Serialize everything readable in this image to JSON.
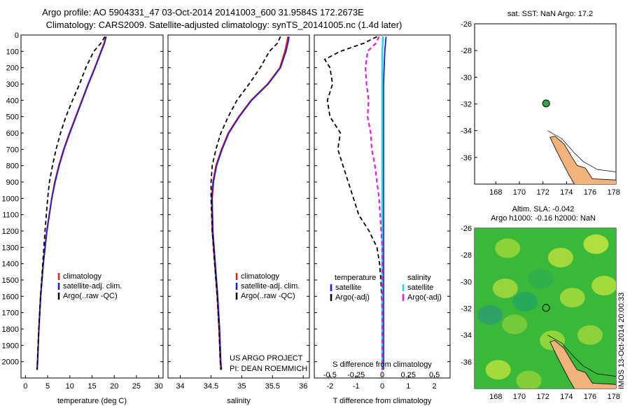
{
  "title": {
    "line1": "Argo profile: AO 5904331_47 03-Oct-2014 20141003_600 31.9584S 172.2673E",
    "line2": "Climatology: CARS2009. Satellite-adjusted climatology: synTS_20141005.nc (1.4d later)"
  },
  "colors": {
    "climatology": "#e8211b",
    "satellite": "#1b1bd8",
    "argo": "#000000",
    "argo_adj_s": "#e020e0",
    "satellite_s": "#22d8e8",
    "land": "#f2b27a",
    "field": "#39b83a"
  },
  "project": {
    "line1": "US ARGO PROJECT",
    "line2": "PI: DEAN ROEMMICH"
  },
  "side_label": "IMOS 13-Oct-2014 20:00:33",
  "chart_data": [
    {
      "type": "line",
      "name": "temperature-profile",
      "xlabel": "temperature (deg C)",
      "xlim": [
        -1,
        31
      ],
      "xticks": [
        0,
        5,
        10,
        15,
        20,
        25,
        30
      ],
      "ylim": [
        2100,
        0
      ],
      "yticks": [
        0,
        100,
        200,
        300,
        400,
        500,
        600,
        700,
        800,
        900,
        1000,
        1100,
        1200,
        1300,
        1400,
        1500,
        1600,
        1700,
        1800,
        1900,
        2000
      ],
      "legend": [
        "climatology",
        "satellite-adj. clim.",
        "Argo(..raw -QC)"
      ],
      "series": [
        {
          "name": "climatology",
          "depth": [
            10,
            50,
            100,
            200,
            300,
            400,
            500,
            600,
            700,
            800,
            900,
            1000,
            1200,
            1400,
            1600,
            1800,
            2000,
            2050
          ],
          "values": [
            18.1,
            17.7,
            17.0,
            15.6,
            14.1,
            12.7,
            11.3,
            9.9,
            8.6,
            7.5,
            6.6,
            5.9,
            4.8,
            4.0,
            3.4,
            3.0,
            2.7,
            2.6
          ]
        },
        {
          "name": "satellite-adj. clim.",
          "depth": [
            10,
            50,
            100,
            200,
            300,
            400,
            500,
            600,
            700,
            800,
            900,
            1000,
            1200,
            1400,
            1600,
            1800,
            2000,
            2050
          ],
          "values": [
            18.2,
            17.8,
            17.1,
            15.7,
            14.2,
            12.8,
            11.4,
            10.0,
            8.7,
            7.6,
            6.7,
            5.95,
            4.85,
            4.05,
            3.45,
            3.05,
            2.75,
            2.65
          ]
        },
        {
          "name": "Argo(..raw -QC)",
          "depth": [
            10,
            50,
            100,
            200,
            300,
            400,
            500,
            600,
            700,
            800,
            900,
            1000,
            1200,
            1400,
            1600,
            1800,
            2000,
            2050
          ],
          "values": [
            17.9,
            17.0,
            15.4,
            13.6,
            12.2,
            10.6,
            9.1,
            7.9,
            6.9,
            6.1,
            5.4,
            5.0,
            4.4,
            3.9,
            3.4,
            3.0,
            2.7,
            2.6
          ]
        }
      ]
    },
    {
      "type": "line",
      "name": "salinity-profile",
      "xlabel": "salinity",
      "xlim": [
        33.8,
        36.1
      ],
      "xticks": [
        34,
        34.5,
        35,
        35.5,
        36
      ],
      "ylim": [
        2100,
        0
      ],
      "legend": [
        "climatology",
        "satellite-adj. clim.",
        "Argo(..raw -QC)"
      ],
      "series": [
        {
          "name": "climatology",
          "depth": [
            10,
            50,
            100,
            200,
            300,
            400,
            500,
            600,
            700,
            800,
            900,
            1000,
            1200,
            1400,
            1600,
            1800,
            2000,
            2050
          ],
          "values": [
            35.75,
            35.73,
            35.7,
            35.62,
            35.42,
            35.15,
            34.95,
            34.78,
            34.67,
            34.58,
            34.53,
            34.51,
            34.52,
            34.56,
            34.6,
            34.63,
            34.65,
            34.66
          ]
        },
        {
          "name": "satellite-adj. clim.",
          "depth": [
            10,
            50,
            100,
            200,
            300,
            400,
            500,
            600,
            700,
            800,
            900,
            1000,
            1200,
            1400,
            1600,
            1800,
            2000,
            2050
          ],
          "values": [
            35.77,
            35.75,
            35.72,
            35.63,
            35.43,
            35.16,
            34.96,
            34.79,
            34.68,
            34.59,
            34.54,
            34.52,
            34.53,
            34.57,
            34.61,
            34.64,
            34.66,
            34.67
          ]
        },
        {
          "name": "Argo(..raw -QC)",
          "depth": [
            10,
            50,
            100,
            200,
            300,
            400,
            500,
            600,
            700,
            800,
            900,
            1000,
            1200,
            1400,
            1600,
            1800,
            2000,
            2050
          ],
          "values": [
            35.63,
            35.58,
            35.45,
            35.3,
            35.12,
            34.92,
            34.78,
            34.66,
            34.58,
            34.52,
            34.5,
            34.5,
            34.52,
            34.56,
            34.6,
            34.63,
            34.65,
            34.66
          ]
        }
      ]
    },
    {
      "type": "line",
      "name": "difference-profile",
      "xlabel": "T difference from climatology",
      "xlabel_top": "S difference from climatology",
      "xlim": [
        -2.6,
        2.6
      ],
      "xticks": [
        -2,
        -1,
        0,
        1,
        2
      ],
      "xticks_s": [
        -0.5,
        -0.25,
        0,
        0.25,
        0.5
      ],
      "xticks_s_labels": [
        "-0.5",
        "-0.25",
        "0",
        "0.25",
        "0.5"
      ],
      "ylim": [
        2100,
        0
      ],
      "legend_headers": [
        "temperature",
        "salinity"
      ],
      "legend": [
        "satellite",
        "Argo(-adj)",
        "satellite",
        "Argo(-adj)"
      ],
      "series": [
        {
          "name": "T satellite",
          "depth": [
            10,
            100,
            300,
            600,
            900,
            1200,
            1500,
            1800,
            2050
          ],
          "values": [
            0.15,
            0.1,
            0.05,
            0.05,
            0.05,
            0.05,
            0.05,
            0.05,
            0.05
          ]
        },
        {
          "name": "T Argo(-adj)",
          "depth": [
            10,
            50,
            100,
            150,
            200,
            300,
            400,
            500,
            600,
            700,
            800,
            900,
            1000,
            1100,
            1200,
            1300,
            1400,
            1500,
            1700,
            2050
          ],
          "values": [
            -0.2,
            -0.7,
            -1.6,
            -2.2,
            -2.0,
            -1.9,
            -2.1,
            -2.0,
            -1.6,
            -1.7,
            -1.5,
            -1.3,
            -1.1,
            -0.9,
            -0.5,
            -0.2,
            -0.1,
            -0.05,
            0,
            0
          ]
        },
        {
          "name": "S satellite",
          "depth": [
            10,
            100,
            300,
            600,
            900,
            1200,
            1500,
            1800,
            2050
          ],
          "values": [
            0.01,
            0.0,
            0.0,
            0.0,
            0.0,
            0.0,
            0.0,
            0.0,
            0.0
          ]
        },
        {
          "name": "S Argo(-adj)",
          "depth": [
            10,
            50,
            100,
            200,
            300,
            400,
            500,
            600,
            700,
            800,
            900,
            1000,
            1100,
            1200,
            1300,
            1400,
            1600,
            2050
          ],
          "values": [
            -0.03,
            -0.06,
            -0.14,
            -0.16,
            -0.15,
            -0.13,
            -0.14,
            -0.11,
            -0.1,
            -0.07,
            -0.05,
            -0.03,
            -0.02,
            -0.01,
            0.0,
            0.0,
            0.0,
            0.0
          ]
        }
      ]
    },
    {
      "type": "scatter",
      "name": "sst-map",
      "title": "sat. SST: NaN Argo: 17.2",
      "xlim": [
        166.2,
        178.2
      ],
      "xticks": [
        168,
        170,
        172,
        174,
        176,
        178
      ],
      "ylim": [
        -38,
        -26
      ],
      "yticks": [
        -26,
        -28,
        -30,
        -32,
        -34,
        -36
      ],
      "points": [
        {
          "lon": 172.27,
          "lat": -31.96
        }
      ]
    },
    {
      "type": "heatmap",
      "name": "sla-map",
      "title_line1": "Altim. SLA: -0.042",
      "title_line2": "Argo h1000: -0.16 h2000: NaN",
      "xlim": [
        166.2,
        178.2
      ],
      "xticks": [
        168,
        170,
        172,
        174,
        176,
        178
      ],
      "ylim": [
        -38,
        -26
      ],
      "yticks": [
        -26,
        -28,
        -30,
        -32,
        -34,
        -36
      ],
      "points": [
        {
          "lon": 172.27,
          "lat": -31.96
        }
      ]
    }
  ]
}
